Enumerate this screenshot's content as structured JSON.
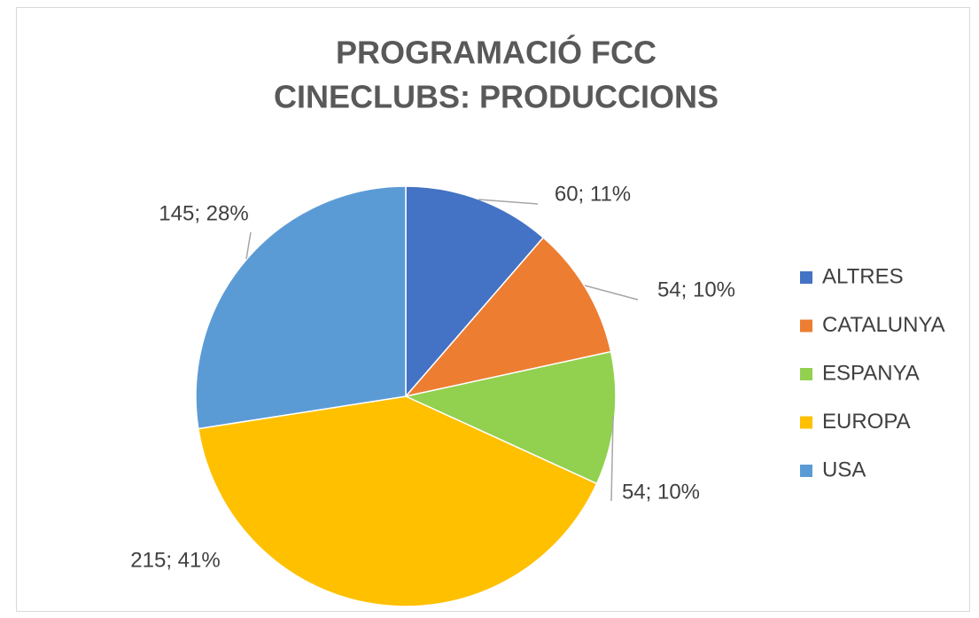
{
  "chart_data": {
    "type": "pie",
    "title": [
      "PROGRAMACIÓ FCC",
      "CINECLUBS: PRODUCCIONS"
    ],
    "categories": [
      "ALTRES",
      "CATALUNYA",
      "ESPANYA",
      "EUROPA",
      "USA"
    ],
    "values": [
      60,
      54,
      54,
      215,
      145
    ],
    "value_labels": [
      "60; 11%",
      "54; 10%",
      "54; 10%",
      "215; 41%",
      "145; 28%"
    ],
    "colors": [
      "#4472c4",
      "#ed7d31",
      "#92d050",
      "#ffc000",
      "#5b9bd5"
    ],
    "legend": "right"
  }
}
